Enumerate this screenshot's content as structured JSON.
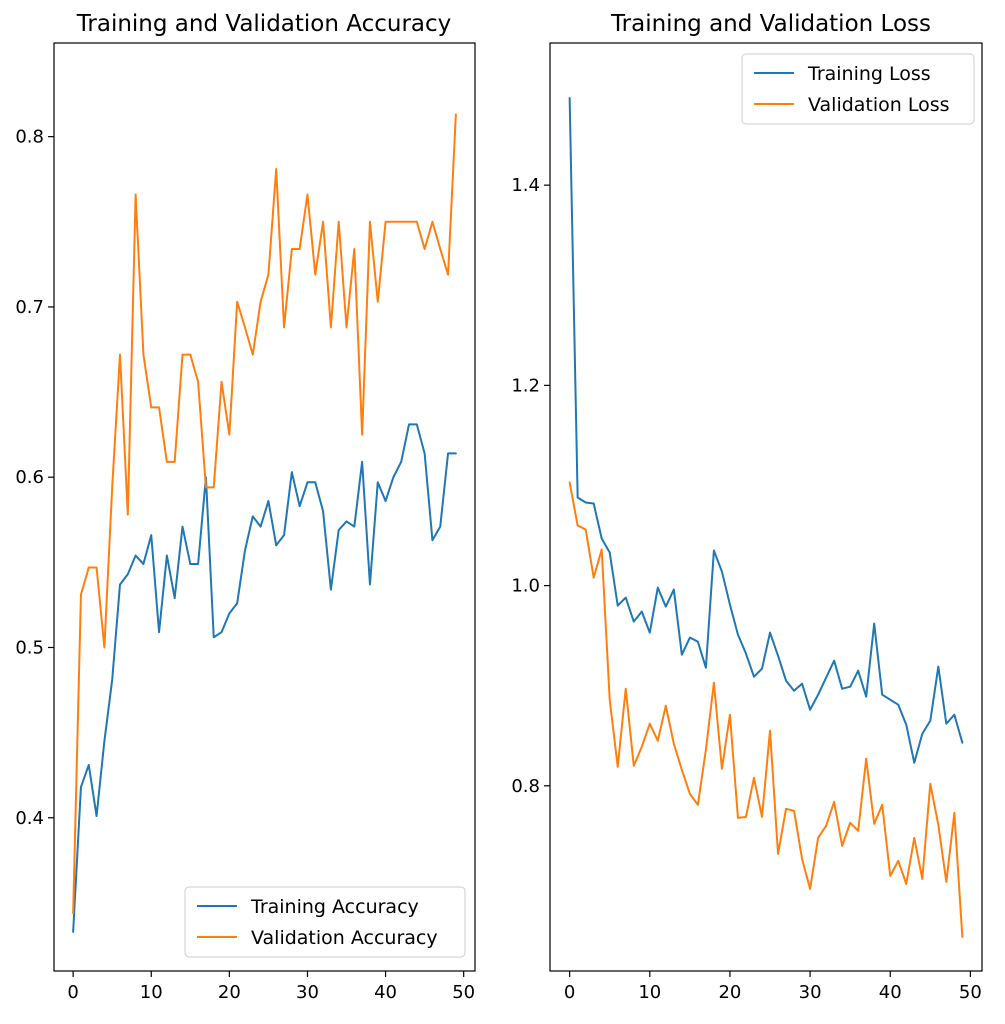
{
  "colors": {
    "training": "#1f77b4",
    "validation": "#ff7f0e",
    "axis": "#000000",
    "background": "#ffffff"
  },
  "chart_data": [
    {
      "type": "line",
      "title": "Training and Validation Accuracy",
      "xlabel": "",
      "ylabel": "",
      "xlim": [
        -2.45,
        51.45
      ],
      "ylim": [
        0.31,
        0.855
      ],
      "xticks": [
        0,
        10,
        20,
        30,
        40,
        50
      ],
      "yticks": [
        0.4,
        0.5,
        0.6,
        0.7,
        0.8
      ],
      "grid": false,
      "legend_position": "lower-right",
      "x": [
        0,
        1,
        2,
        3,
        4,
        5,
        6,
        7,
        8,
        9,
        10,
        11,
        12,
        13,
        14,
        15,
        16,
        17,
        18,
        19,
        20,
        21,
        22,
        23,
        24,
        25,
        26,
        27,
        28,
        29,
        30,
        31,
        32,
        33,
        34,
        35,
        36,
        37,
        38,
        39,
        40,
        41,
        42,
        43,
        44,
        45,
        46,
        47,
        48,
        49
      ],
      "series": [
        {
          "name": "Training Accuracy",
          "color": "#1f77b4",
          "values": [
            0.333,
            0.418,
            0.431,
            0.401,
            0.445,
            0.481,
            0.537,
            0.543,
            0.554,
            0.549,
            0.566,
            0.509,
            0.554,
            0.529,
            0.571,
            0.549,
            0.549,
            0.6,
            0.506,
            0.509,
            0.52,
            0.526,
            0.557,
            0.577,
            0.571,
            0.586,
            0.56,
            0.566,
            0.603,
            0.583,
            0.597,
            0.597,
            0.58,
            0.534,
            0.569,
            0.574,
            0.571,
            0.609,
            0.537,
            0.597,
            0.586,
            0.6,
            0.609,
            0.631,
            0.631,
            0.614,
            0.563,
            0.571,
            0.614,
            0.614
          ]
        },
        {
          "name": "Validation Accuracy",
          "color": "#ff7f0e",
          "values": [
            0.344,
            0.531,
            0.547,
            0.547,
            0.5,
            0.594,
            0.672,
            0.578,
            0.766,
            0.672,
            0.641,
            0.641,
            0.609,
            0.609,
            0.672,
            0.672,
            0.656,
            0.594,
            0.594,
            0.656,
            0.625,
            0.703,
            0.688,
            0.672,
            0.703,
            0.719,
            0.781,
            0.688,
            0.734,
            0.734,
            0.766,
            0.719,
            0.75,
            0.688,
            0.75,
            0.688,
            0.734,
            0.625,
            0.75,
            0.703,
            0.75,
            0.75,
            0.75,
            0.75,
            0.75,
            0.734,
            0.75,
            0.734,
            0.719,
            0.813
          ]
        }
      ]
    },
    {
      "type": "line",
      "title": "Training and Validation Loss",
      "xlabel": "",
      "ylabel": "",
      "xlim": [
        -2.45,
        51.45
      ],
      "ylim": [
        0.615,
        1.542
      ],
      "xticks": [
        0,
        10,
        20,
        30,
        40,
        50
      ],
      "yticks": [
        0.8,
        1.0,
        1.2,
        1.4
      ],
      "grid": false,
      "legend_position": "upper-right",
      "x": [
        0,
        1,
        2,
        3,
        4,
        5,
        6,
        7,
        8,
        9,
        10,
        11,
        12,
        13,
        14,
        15,
        16,
        17,
        18,
        19,
        20,
        21,
        22,
        23,
        24,
        25,
        26,
        27,
        28,
        29,
        30,
        31,
        32,
        33,
        34,
        35,
        36,
        37,
        38,
        39,
        40,
        41,
        42,
        43,
        44,
        45,
        46,
        47,
        48,
        49
      ],
      "series": [
        {
          "name": "Training Loss",
          "color": "#1f77b4",
          "values": [
            1.487,
            1.088,
            1.083,
            1.082,
            1.047,
            1.033,
            0.98,
            0.988,
            0.964,
            0.974,
            0.953,
            0.998,
            0.979,
            0.996,
            0.931,
            0.948,
            0.944,
            0.918,
            1.035,
            1.014,
            0.981,
            0.951,
            0.932,
            0.909,
            0.917,
            0.953,
            0.93,
            0.905,
            0.895,
            0.902,
            0.876,
            0.891,
            0.908,
            0.925,
            0.897,
            0.899,
            0.915,
            0.889,
            0.962,
            0.891,
            0.886,
            0.881,
            0.861,
            0.823,
            0.852,
            0.865,
            0.919,
            0.862,
            0.871,
            0.843
          ]
        },
        {
          "name": "Validation Loss",
          "color": "#ff7f0e",
          "values": [
            1.103,
            1.06,
            1.056,
            1.008,
            1.036,
            0.886,
            0.819,
            0.897,
            0.82,
            0.839,
            0.862,
            0.845,
            0.88,
            0.842,
            0.816,
            0.792,
            0.781,
            0.836,
            0.903,
            0.817,
            0.871,
            0.768,
            0.769,
            0.808,
            0.769,
            0.855,
            0.732,
            0.777,
            0.775,
            0.727,
            0.697,
            0.748,
            0.76,
            0.784,
            0.74,
            0.763,
            0.755,
            0.827,
            0.762,
            0.781,
            0.71,
            0.725,
            0.702,
            0.748,
            0.707,
            0.802,
            0.761,
            0.704,
            0.773,
            0.649
          ]
        }
      ]
    }
  ]
}
